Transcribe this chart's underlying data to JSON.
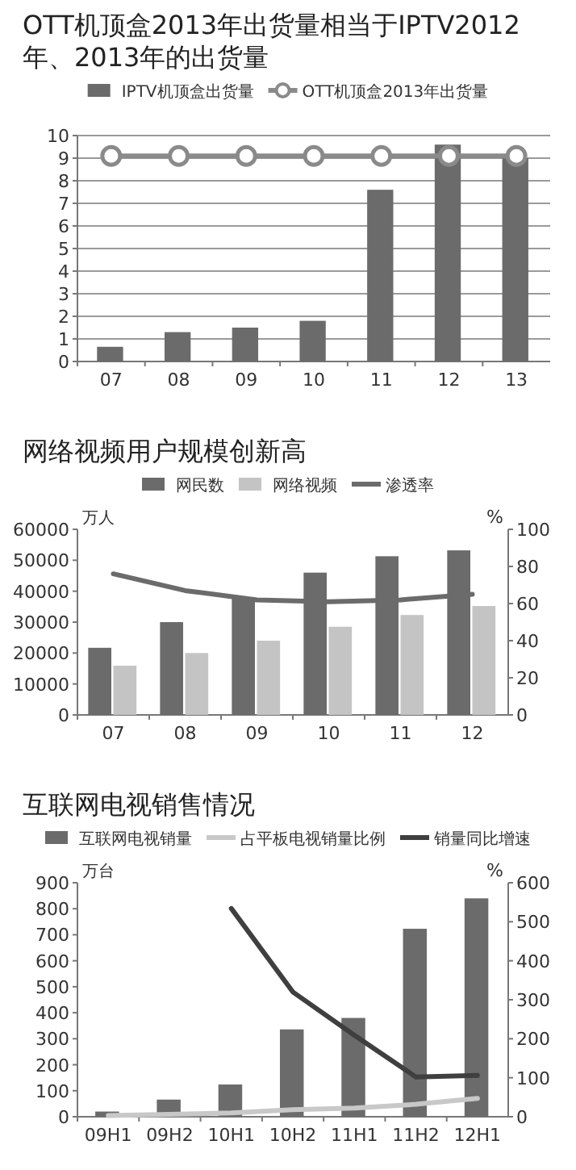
{
  "chart_data": [
    {
      "type": "bar",
      "title": "OTT机顶盒2013年出货量相当于IPTV2012年、2013年的出货量",
      "categories": [
        "07",
        "08",
        "09",
        "10",
        "11",
        "12",
        "13"
      ],
      "series": [
        {
          "name": "IPTV机顶盒出货量",
          "color": "#6b6b6b",
          "values": [
            0.65,
            1.3,
            1.5,
            1.8,
            7.6,
            9.6,
            9.0
          ]
        },
        {
          "name": "OTT机顶盒2013年出货量",
          "type": "line",
          "color": "#8a8a8a",
          "marker": "circle",
          "values": [
            9.1,
            9.1,
            9.1,
            9.1,
            9.1,
            9.1,
            9.1
          ]
        }
      ],
      "ylim": [
        0,
        10
      ],
      "yticks": [
        0,
        1,
        2,
        3,
        4,
        5,
        6,
        7,
        8,
        9,
        10
      ],
      "grid": "y",
      "legend": "top"
    },
    {
      "type": "bar",
      "title": "网络视频用户规模创新高",
      "categories": [
        "07",
        "08",
        "09",
        "10",
        "11",
        "12"
      ],
      "ylabel": "万人",
      "y2label": "%",
      "series": [
        {
          "name": "网民数",
          "color": "#6b6b6b",
          "values": [
            21700,
            30000,
            38000,
            46000,
            51300,
            53200
          ]
        },
        {
          "name": "网络视频",
          "color": "#c4c4c4",
          "values": [
            15900,
            20000,
            24000,
            28500,
            32300,
            35200
          ]
        },
        {
          "name": "渗透率",
          "type": "line",
          "axis": "y2",
          "color": "#6b6b6b",
          "values": [
            76,
            67,
            62,
            61,
            62,
            65
          ]
        }
      ],
      "ylim": [
        0,
        60000
      ],
      "yticks": [
        0,
        10000,
        20000,
        30000,
        40000,
        50000,
        60000
      ],
      "y2lim": [
        0,
        100
      ],
      "y2ticks": [
        0,
        20,
        40,
        60,
        80,
        100
      ],
      "legend": "top"
    },
    {
      "type": "bar",
      "title": "互联网电视销售情况",
      "categories": [
        "09H1",
        "09H2",
        "10H1",
        "10H2",
        "11H1",
        "11H2",
        "12H1"
      ],
      "ylabel": "万台",
      "y2label": "%",
      "series": [
        {
          "name": "互联网电视销量",
          "color": "#6b6b6b",
          "values": [
            20,
            66,
            124,
            336,
            380,
            723,
            840
          ]
        },
        {
          "name": "占平板电视销量比例",
          "type": "line",
          "axis": "y2",
          "color": "#c8c8c8",
          "values": [
            3,
            6,
            10,
            18,
            22,
            32,
            47
          ]
        },
        {
          "name": "销量同比增速",
          "type": "line",
          "axis": "y2",
          "color": "#3f3f3f",
          "values": [
            null,
            null,
            534,
            320,
            209,
            102,
            106
          ]
        }
      ],
      "ylim": [
        0,
        900
      ],
      "yticks": [
        0,
        100,
        200,
        300,
        400,
        500,
        600,
        700,
        800,
        900
      ],
      "y2lim": [
        0,
        600
      ],
      "y2ticks": [
        0,
        100,
        200,
        300,
        400,
        500,
        600
      ],
      "legend": "top"
    }
  ]
}
